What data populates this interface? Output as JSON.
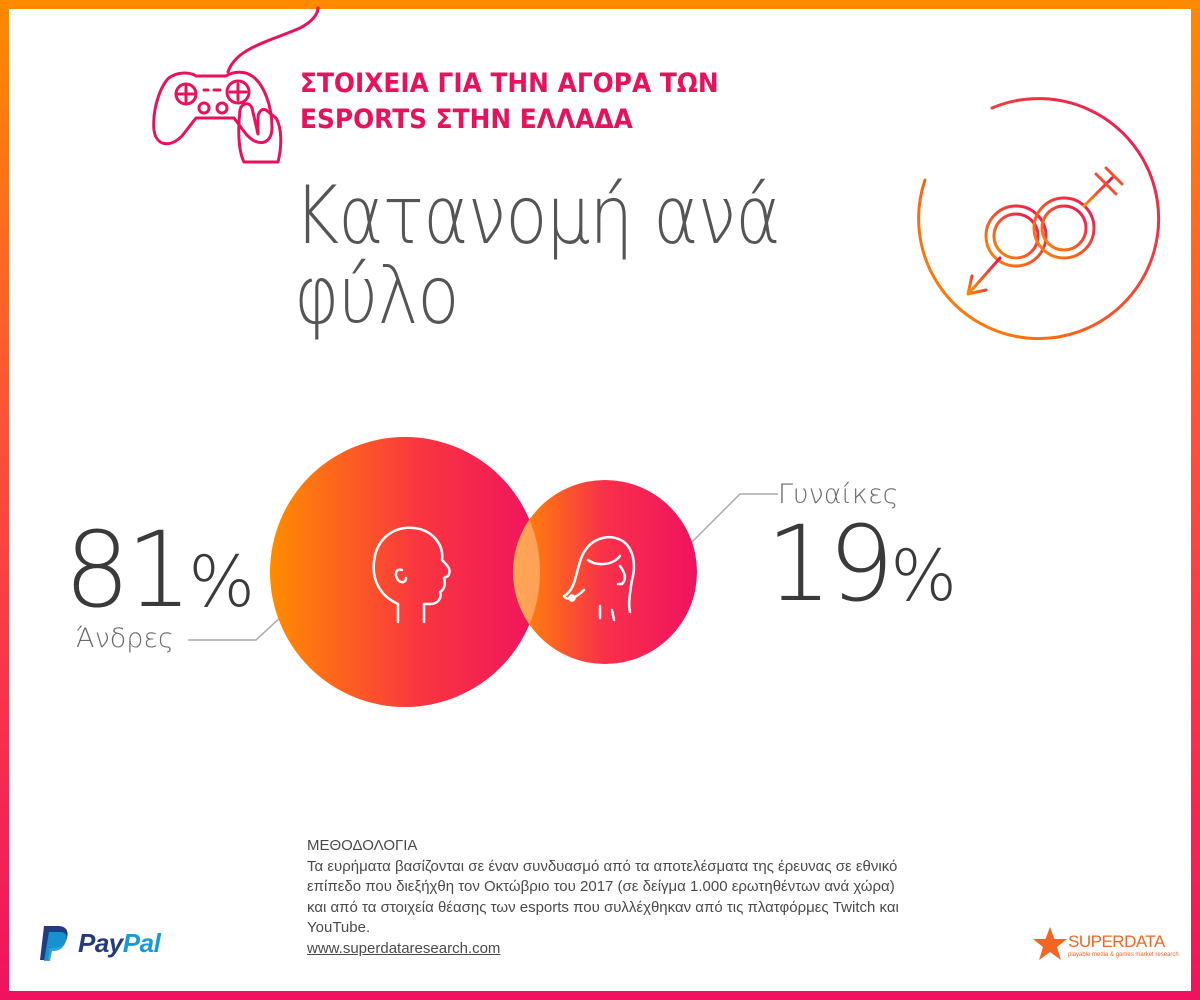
{
  "header": {
    "title_line1": "ΣΤΟΙΧΕΙΑ ΓΙΑ ΤΗΝ ΑΓΟΡΑ ΤΩΝ",
    "title_line2": "ESPORTS ΣΤΗΝ ΕΛΛΑΔΑ",
    "icon": "gamepad-hand-icon",
    "color": "#e8125c"
  },
  "title": {
    "line1": "Κατανομή ανά",
    "line2": "φύλο",
    "icon": "gender-symbols-icon"
  },
  "chart_data": {
    "type": "pie",
    "title": "Κατανομή ανά φύλο",
    "series": [
      {
        "name": "Άνδρες",
        "value": 81,
        "display": "81",
        "unit": "%",
        "icon": "man-head-icon"
      },
      {
        "name": "Γυναίκες",
        "value": 19,
        "display": "19",
        "unit": "%",
        "icon": "woman-head-icon"
      }
    ],
    "encoding": "proportional-area-circles",
    "colors": {
      "gradient_start": "#ff8c00",
      "gradient_end": "#f0125f"
    }
  },
  "methodology": {
    "heading": "ΜΕΘΟΔΟΛΟΓΙΑ",
    "body": "Τα ευρήματα βασίζονται σε έναν συνδυασμό από τα αποτελέσματα της έρευνας σε εθνικό επίπεδο που διεξήχθη τον Οκτώβριο του 2017 (σε δείγμα 1.000 ερωτηθέντων ανά χώρα) και από τα στοιχεία θέασης των esports που συλλέχθηκαν από τις πλατφόρμες Twitch και YouTube.",
    "link": "www.superdataresearch.com"
  },
  "logos": {
    "paypal_pay": "Pay",
    "paypal_pal": "Pal",
    "paypal_icon": "paypal-p-icon",
    "superdata_name": "SUPERDATA",
    "superdata_tagline": "playable media & games market research",
    "superdata_icon": "star-icon"
  }
}
